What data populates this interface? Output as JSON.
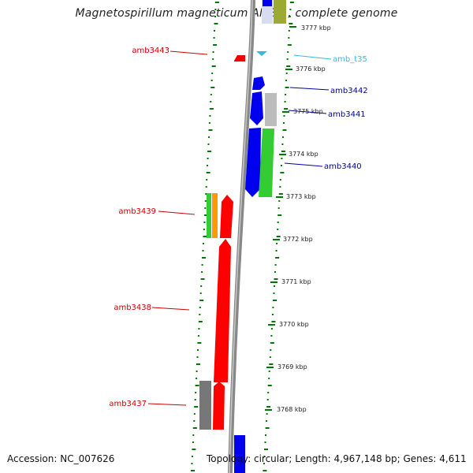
{
  "title": "Magnetospirillum magneticum AMB-1, complete genome",
  "footer": {
    "accession": "Accession: NC_007626",
    "topology": "Topology: circular; Length: 4,967,148 bp; Genes: 4,611"
  },
  "scale_ticks": [
    "3777 kbp",
    "3776 kbp",
    "3775 kbp",
    "3774 kbp",
    "3773 kbp",
    "3772 kbp",
    "3771 kbp",
    "3770 kbp",
    "3769 kbp",
    "3768 kbp"
  ],
  "genes": [
    {
      "label": "amb3443",
      "color": "#cc0000"
    },
    {
      "label": "amb_t35",
      "color": "#33bbdd"
    },
    {
      "label": "amb3442",
      "color": "#0000aa"
    },
    {
      "label": "amb3441",
      "color": "#0000aa"
    },
    {
      "label": "amb3440",
      "color": "#0000aa"
    },
    {
      "label": "amb3439",
      "color": "#cc0000"
    },
    {
      "label": "amb3438",
      "color": "#cc0000"
    },
    {
      "label": "amb3437",
      "color": "#cc0000"
    }
  ],
  "colors": {
    "reverse_cds": "#ff0000",
    "forward_cds": "#0000ff",
    "green": "#33cc33",
    "orange": "#ff9900",
    "gray": "#777777",
    "light_gray": "#bbbbbb",
    "trna": "#33bbdd",
    "dotted_ring": "#007700",
    "backbone": "#888888"
  }
}
